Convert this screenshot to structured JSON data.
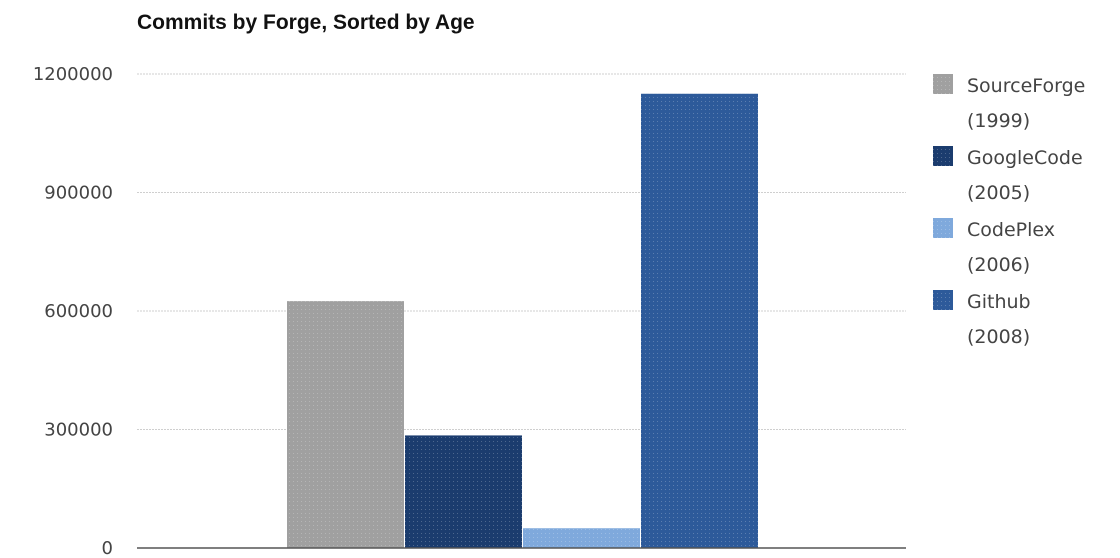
{
  "chart_data": {
    "type": "bar",
    "title": "Commits by Forge, Sorted by Age",
    "xlabel": "",
    "ylabel": "",
    "ylim": [
      0,
      1200000
    ],
    "yticks": [
      "0",
      "300000",
      "600000",
      "900000",
      "1200000"
    ],
    "grid": true,
    "legend_position": "right",
    "series": [
      {
        "name": "SourceForge",
        "label_line2": "(1999)",
        "value": 625000,
        "color": "#a0a0a0"
      },
      {
        "name": "GoogleCode",
        "label_line2": "(2005)",
        "value": 285000,
        "color": "#1b3c6e"
      },
      {
        "name": "CodePlex",
        "label_line2": "(2006)",
        "value": 50000,
        "color": "#7fa9dc"
      },
      {
        "name": "Github",
        "label_line2": "(2008)",
        "value": 1150000,
        "color": "#2d5a9a"
      }
    ]
  }
}
